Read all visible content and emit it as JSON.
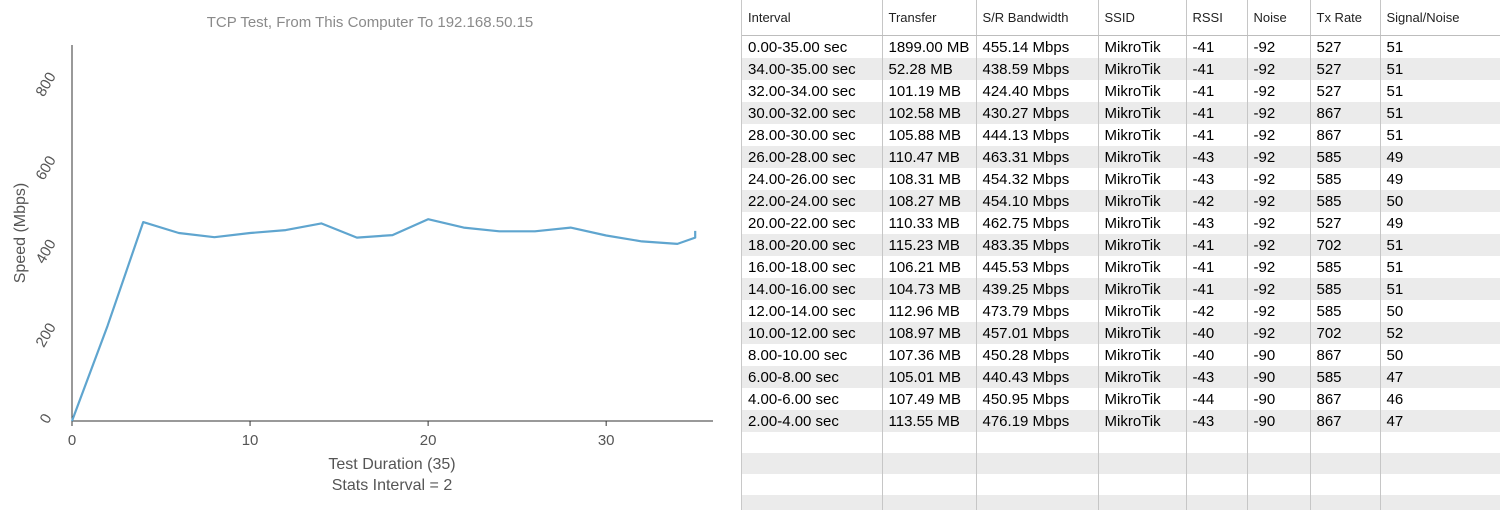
{
  "chart_data": {
    "type": "line",
    "title": "TCP Test,  From This Computer To 192.168.50.15",
    "xlabel": "Test Duration (35)",
    "xlabel2": "Stats Interval = 2",
    "ylabel": "Speed (Mbps)",
    "xlim": [
      0,
      36
    ],
    "ylim": [
      0,
      900
    ],
    "xticks": [
      0,
      10,
      20,
      30
    ],
    "yticks": [
      0,
      200,
      400,
      600,
      800
    ],
    "color": "#5fa5cf",
    "series": [
      {
        "x": [
          0,
          2,
          4,
          6,
          8,
          10,
          12,
          14,
          16,
          18,
          20,
          22,
          24,
          26,
          28,
          30,
          32,
          34,
          35,
          35
        ],
        "y": [
          0,
          228,
          476,
          450,
          440,
          450,
          457,
          473,
          439,
          445,
          483,
          463,
          454,
          454,
          463,
          444,
          430,
          424,
          439,
          455
        ]
      }
    ]
  },
  "table": {
    "columns": [
      "Interval",
      "Transfer",
      "S/R Bandwidth",
      "SSID",
      "RSSI",
      "Noise",
      "Tx Rate",
      "Signal/Noise"
    ],
    "rows": [
      [
        "0.00-35.00 sec",
        "1899.00 MB",
        "455.14 Mbps",
        "MikroTik",
        "-41",
        "-92",
        "527",
        "51"
      ],
      [
        "34.00-35.00 sec",
        "52.28 MB",
        "438.59 Mbps",
        "MikroTik",
        "-41",
        "-92",
        "527",
        "51"
      ],
      [
        "32.00-34.00 sec",
        "101.19 MB",
        "424.40 Mbps",
        "MikroTik",
        "-41",
        "-92",
        "527",
        "51"
      ],
      [
        "30.00-32.00 sec",
        "102.58 MB",
        "430.27 Mbps",
        "MikroTik",
        "-41",
        "-92",
        "867",
        "51"
      ],
      [
        "28.00-30.00 sec",
        "105.88 MB",
        "444.13 Mbps",
        "MikroTik",
        "-41",
        "-92",
        "867",
        "51"
      ],
      [
        "26.00-28.00 sec",
        "110.47 MB",
        "463.31 Mbps",
        "MikroTik",
        "-43",
        "-92",
        "585",
        "49"
      ],
      [
        "24.00-26.00 sec",
        "108.31 MB",
        "454.32 Mbps",
        "MikroTik",
        "-43",
        "-92",
        "585",
        "49"
      ],
      [
        "22.00-24.00 sec",
        "108.27 MB",
        "454.10 Mbps",
        "MikroTik",
        "-42",
        "-92",
        "585",
        "50"
      ],
      [
        "20.00-22.00 sec",
        "110.33 MB",
        "462.75 Mbps",
        "MikroTik",
        "-43",
        "-92",
        "527",
        "49"
      ],
      [
        "18.00-20.00 sec",
        "115.23 MB",
        "483.35 Mbps",
        "MikroTik",
        "-41",
        "-92",
        "702",
        "51"
      ],
      [
        "16.00-18.00 sec",
        "106.21 MB",
        "445.53 Mbps",
        "MikroTik",
        "-41",
        "-92",
        "585",
        "51"
      ],
      [
        "14.00-16.00 sec",
        "104.73 MB",
        "439.25 Mbps",
        "MikroTik",
        "-41",
        "-92",
        "585",
        "51"
      ],
      [
        "12.00-14.00 sec",
        "112.96 MB",
        "473.79 Mbps",
        "MikroTik",
        "-42",
        "-92",
        "585",
        "50"
      ],
      [
        "10.00-12.00 sec",
        "108.97 MB",
        "457.01 Mbps",
        "MikroTik",
        "-40",
        "-92",
        "702",
        "52"
      ],
      [
        "8.00-10.00 sec",
        "107.36 MB",
        "450.28 Mbps",
        "MikroTik",
        "-40",
        "-90",
        "867",
        "50"
      ],
      [
        "6.00-8.00 sec",
        "105.01 MB",
        "440.43 Mbps",
        "MikroTik",
        "-43",
        "-90",
        "585",
        "47"
      ],
      [
        "4.00-6.00 sec",
        "107.49 MB",
        "450.95 Mbps",
        "MikroTik",
        "-44",
        "-90",
        "867",
        "46"
      ],
      [
        "2.00-4.00 sec",
        "113.55 MB",
        "476.19 Mbps",
        "MikroTik",
        "-43",
        "-90",
        "867",
        "47"
      ]
    ]
  }
}
